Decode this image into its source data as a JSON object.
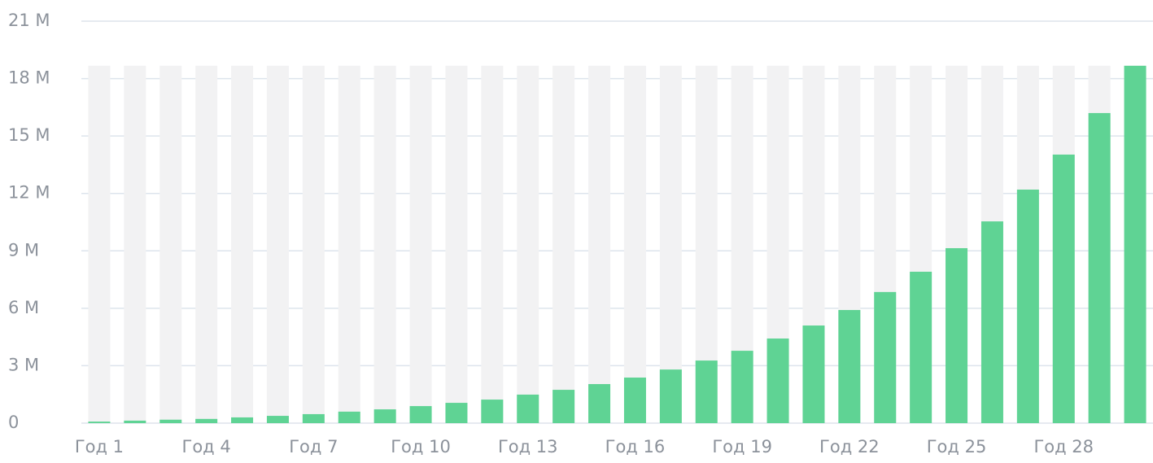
{
  "chart_data": {
    "type": "bar",
    "categories": [
      "Год 1",
      null,
      null,
      "Год 4",
      null,
      null,
      "Год 7",
      null,
      null,
      "Год 10",
      null,
      null,
      "Год 13",
      null,
      null,
      "Год 16",
      null,
      null,
      "Год 19",
      null,
      null,
      "Год 22",
      null,
      null,
      "Год 25",
      null,
      null,
      "Год 28",
      null,
      null
    ],
    "values": [
      80000,
      130000,
      180000,
      220000,
      300000,
      380000,
      470000,
      600000,
      720000,
      890000,
      1060000,
      1230000,
      1490000,
      1740000,
      2040000,
      2380000,
      2800000,
      3270000,
      3780000,
      4420000,
      5100000,
      5910000,
      6850000,
      7910000,
      9140000,
      10540000,
      12200000,
      14030000,
      16200000,
      18670000
    ],
    "color": "#5fd394",
    "ylim": [
      0,
      21000000
    ],
    "yticks": [
      {
        "value": 0,
        "label": "0"
      },
      {
        "value": 3000000,
        "label": "3 M"
      },
      {
        "value": 6000000,
        "label": "6 M"
      },
      {
        "value": 9000000,
        "label": "9 M"
      },
      {
        "value": 12000000,
        "label": "12 M"
      },
      {
        "value": 15000000,
        "label": "15 M"
      },
      {
        "value": 18000000,
        "label": "18 M"
      },
      {
        "value": 21000000,
        "label": "21 M"
      }
    ],
    "grid": true
  }
}
